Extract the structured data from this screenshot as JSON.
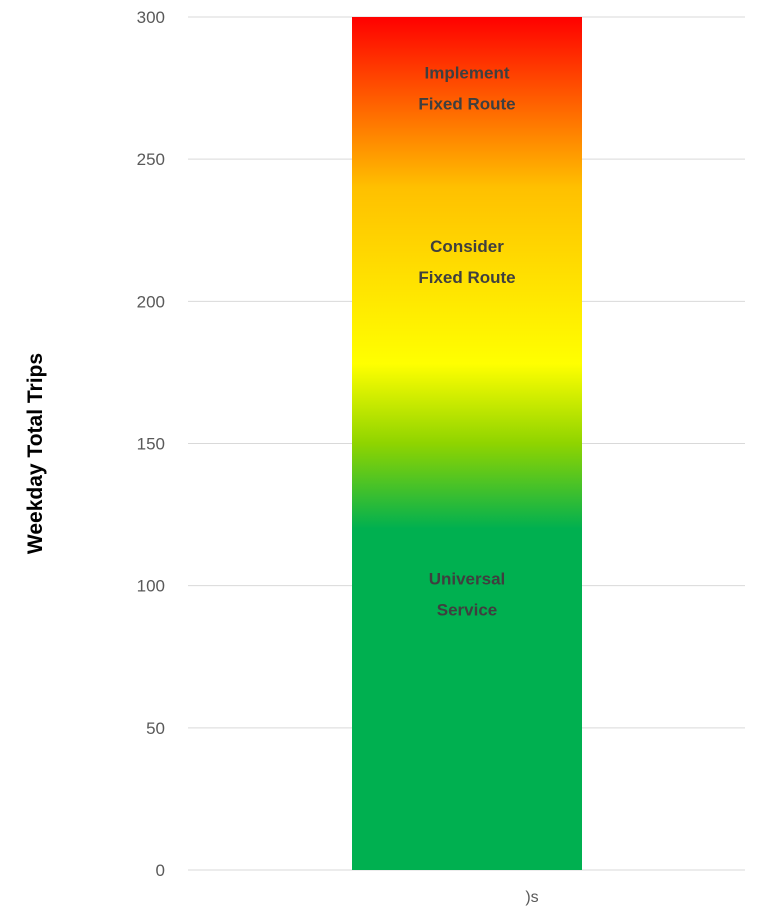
{
  "chart_data": {
    "type": "bar",
    "title": "",
    "xlabel": "",
    "ylabel": "Weekday Total Trips",
    "ylim": [
      0,
      300
    ],
    "yticks": [
      0,
      50,
      100,
      150,
      200,
      250,
      300
    ],
    "grid": true,
    "categories": [
      ")s"
    ],
    "values": [
      300
    ],
    "gradient": [
      {
        "value": 0,
        "color": "#00b050"
      },
      {
        "value": 120,
        "color": "#00b050"
      },
      {
        "value": 150,
        "color": "#8fd400"
      },
      {
        "value": 178,
        "color": "#ffff00"
      },
      {
        "value": 240,
        "color": "#ffc000"
      },
      {
        "value": 300,
        "color": "#ff0000"
      }
    ],
    "bands": [
      {
        "lines": [
          "Implement",
          "Fixed Route"
        ],
        "center": 275
      },
      {
        "lines": [
          "Consider",
          "Fixed Route"
        ],
        "center": 214
      },
      {
        "lines": [
          "Universal",
          "Service"
        ],
        "center": 97
      }
    ]
  }
}
